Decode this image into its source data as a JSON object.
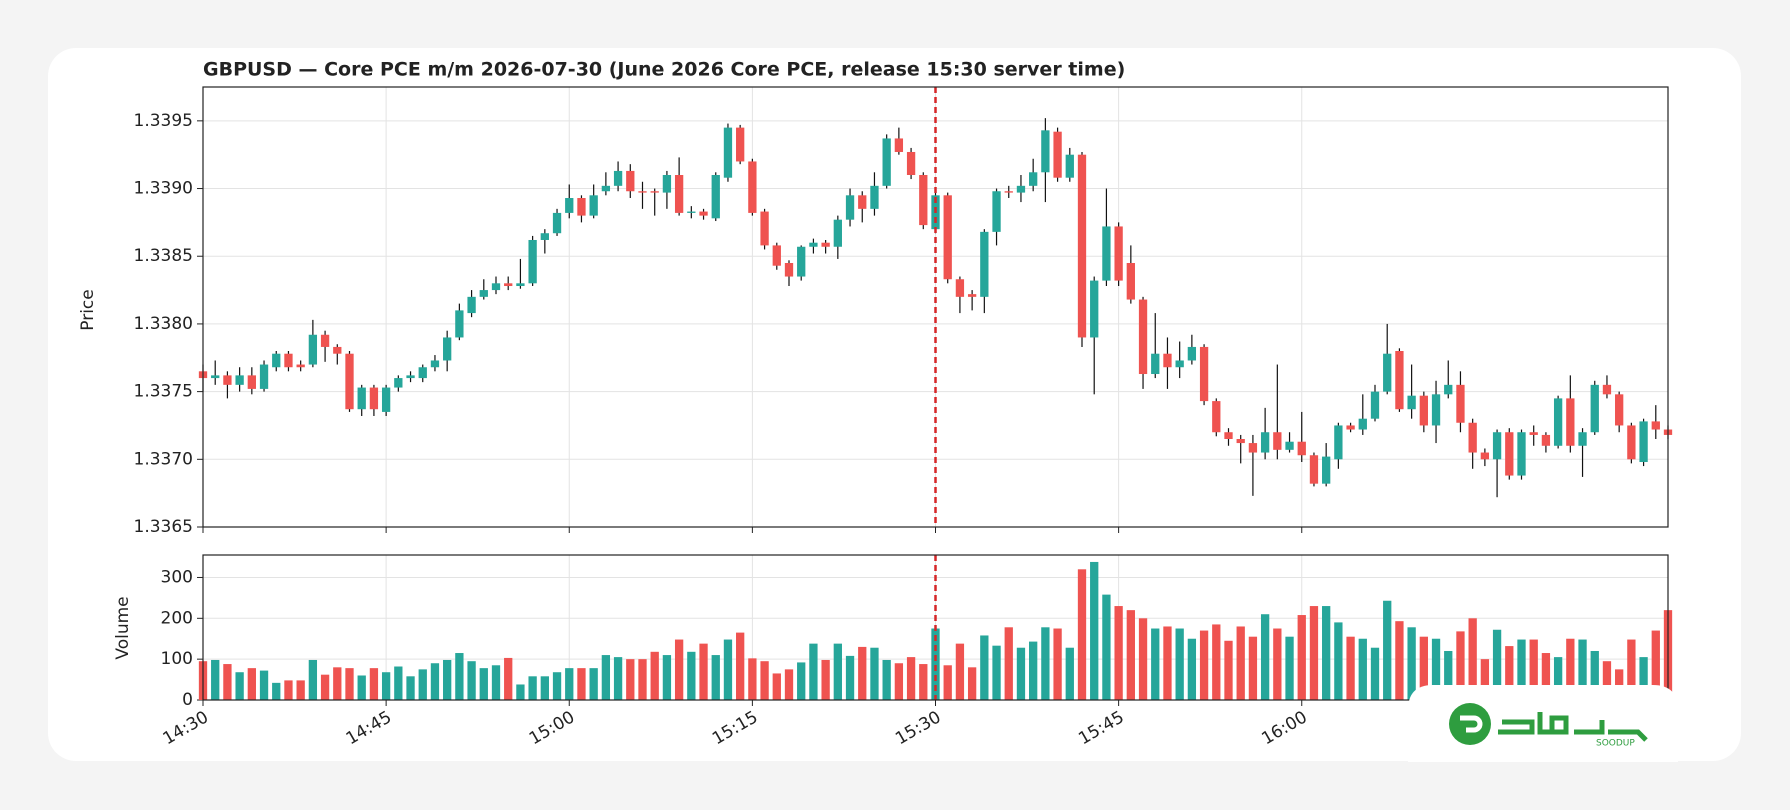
{
  "chart_data": {
    "type": "candlestick",
    "title": "GBPUSD — Core PCE m/m 2026-07-30 (June 2026 Core PCE, release 15:30 server time)",
    "ylabel": "Price",
    "volume_label": "Volume",
    "up_color": "#26a69a",
    "down_color": "#ef5350",
    "vline": {
      "x": "15:30",
      "color": "#d62728"
    },
    "grid": true,
    "watermark": "SOODUP",
    "x": [
      "14:30",
      "14:31",
      "14:32",
      "14:33",
      "14:34",
      "14:35",
      "14:36",
      "14:37",
      "14:38",
      "14:39",
      "14:40",
      "14:41",
      "14:42",
      "14:43",
      "14:44",
      "14:45",
      "14:46",
      "14:47",
      "14:48",
      "14:49",
      "14:50",
      "14:51",
      "14:52",
      "14:53",
      "14:54",
      "14:55",
      "14:56",
      "14:57",
      "14:58",
      "14:59",
      "15:00",
      "15:01",
      "15:02",
      "15:03",
      "15:04",
      "15:05",
      "15:06",
      "15:07",
      "15:08",
      "15:09",
      "15:10",
      "15:11",
      "15:12",
      "15:13",
      "15:14",
      "15:15",
      "15:16",
      "15:17",
      "15:18",
      "15:19",
      "15:20",
      "15:21",
      "15:22",
      "15:23",
      "15:24",
      "15:25",
      "15:26",
      "15:27",
      "15:28",
      "15:29",
      "15:30",
      "15:31",
      "15:32",
      "15:33",
      "15:34",
      "15:35",
      "15:36",
      "15:37",
      "15:38",
      "15:39",
      "15:40",
      "15:41",
      "15:42",
      "15:43",
      "15:44",
      "15:45",
      "15:46",
      "15:47",
      "15:48",
      "15:49",
      "15:50",
      "15:51",
      "15:52",
      "15:53",
      "15:54",
      "15:55",
      "15:56",
      "15:57",
      "15:58",
      "15:59",
      "16:00",
      "16:01",
      "16:02",
      "16:03",
      "16:04",
      "16:05",
      "16:06",
      "16:07",
      "16:08",
      "16:09",
      "16:10",
      "16:11",
      "16:12",
      "16:13",
      "16:14",
      "16:15",
      "16:16",
      "16:17",
      "16:18",
      "16:19",
      "16:20",
      "16:21",
      "16:22",
      "16:23",
      "16:24",
      "16:25",
      "16:26",
      "16:27",
      "16:28",
      "16:29",
      "16:30"
    ],
    "open": [
      1.33765,
      1.3376,
      1.33762,
      1.33755,
      1.33762,
      1.33752,
      1.33768,
      1.33778,
      1.3377,
      1.3377,
      1.33792,
      1.33783,
      1.33778,
      1.33737,
      1.33753,
      1.33735,
      1.33753,
      1.3376,
      1.3376,
      1.33768,
      1.33773,
      1.3379,
      1.33808,
      1.3382,
      1.33825,
      1.3383,
      1.33828,
      1.3383,
      1.33862,
      1.33867,
      1.33882,
      1.33893,
      1.3388,
      1.33898,
      1.33902,
      1.33913,
      1.33898,
      1.33898,
      1.33897,
      1.3391,
      1.33882,
      1.33883,
      1.33878,
      1.33908,
      1.33945,
      1.3392,
      1.33883,
      1.33858,
      1.33845,
      1.33835,
      1.33857,
      1.3386,
      1.33857,
      1.33877,
      1.33895,
      1.33885,
      1.33902,
      1.33937,
      1.33927,
      1.3391,
      1.3387,
      1.33895,
      1.33833,
      1.33822,
      1.3382,
      1.33868,
      1.33898,
      1.33897,
      1.33902,
      1.33912,
      1.33942,
      1.33908,
      1.33925,
      1.3379,
      1.33832,
      1.33872,
      1.33845,
      1.33818,
      1.33763,
      1.33778,
      1.33768,
      1.33773,
      1.33783,
      1.33743,
      1.3372,
      1.33715,
      1.33712,
      1.33705,
      1.3372,
      1.33707,
      1.33713,
      1.33703,
      1.33682,
      1.337,
      1.33725,
      1.33722,
      1.3373,
      1.3375,
      1.3378,
      1.33737,
      1.33747,
      1.33725,
      1.33748,
      1.33755,
      1.33727,
      1.33705,
      1.337,
      1.3372,
      1.33688,
      1.3372,
      1.33718,
      1.3371,
      1.33745,
      1.3371,
      1.3372,
      1.33755,
      1.33748,
      1.33725,
      1.33698,
      1.33728,
      1.33722
    ],
    "high": [
      1.3377,
      1.33773,
      1.33765,
      1.33768,
      1.33768,
      1.33773,
      1.3378,
      1.3378,
      1.33773,
      1.33803,
      1.33795,
      1.33785,
      1.3378,
      1.33755,
      1.33755,
      1.33755,
      1.33762,
      1.33765,
      1.3377,
      1.33777,
      1.33795,
      1.33815,
      1.33825,
      1.33833,
      1.33835,
      1.33835,
      1.33848,
      1.33865,
      1.3387,
      1.33885,
      1.33903,
      1.33895,
      1.33903,
      1.33912,
      1.3392,
      1.33918,
      1.33905,
      1.339,
      1.33913,
      1.33923,
      1.33887,
      1.33885,
      1.33912,
      1.33948,
      1.33947,
      1.33922,
      1.33885,
      1.3386,
      1.33847,
      1.33858,
      1.33863,
      1.33862,
      1.3388,
      1.339,
      1.33898,
      1.33912,
      1.3394,
      1.33945,
      1.3393,
      1.33912,
      1.33898,
      1.33897,
      1.33835,
      1.33825,
      1.3387,
      1.339,
      1.33902,
      1.3391,
      1.33922,
      1.33952,
      1.33945,
      1.3393,
      1.33927,
      1.33835,
      1.339,
      1.33875,
      1.33858,
      1.3382,
      1.33808,
      1.3379,
      1.33787,
      1.33792,
      1.33785,
      1.33745,
      1.33723,
      1.33718,
      1.33718,
      1.33738,
      1.3377,
      1.3372,
      1.33735,
      1.33705,
      1.33712,
      1.33727,
      1.33727,
      1.33748,
      1.33755,
      1.338,
      1.33782,
      1.3377,
      1.3375,
      1.33758,
      1.33773,
      1.33765,
      1.3373,
      1.33708,
      1.33722,
      1.33723,
      1.33722,
      1.33725,
      1.3372,
      1.33747,
      1.33762,
      1.33723,
      1.33758,
      1.33762,
      1.3375,
      1.33727,
      1.3373,
      1.3374,
      1.33725
    ],
    "low": [
      1.3375,
      1.33755,
      1.33745,
      1.3375,
      1.33748,
      1.3375,
      1.33765,
      1.33765,
      1.33765,
      1.33768,
      1.33772,
      1.3377,
      1.33735,
      1.33732,
      1.33732,
      1.33732,
      1.3375,
      1.33757,
      1.33757,
      1.33765,
      1.33765,
      1.33788,
      1.33805,
      1.33818,
      1.33822,
      1.33825,
      1.33826,
      1.33828,
      1.33852,
      1.33865,
      1.33878,
      1.33875,
      1.33878,
      1.33895,
      1.33898,
      1.33893,
      1.33885,
      1.3388,
      1.33885,
      1.3388,
      1.33878,
      1.33877,
      1.33876,
      1.33905,
      1.33918,
      1.3388,
      1.33855,
      1.3384,
      1.33828,
      1.33832,
      1.33852,
      1.33852,
      1.33848,
      1.33872,
      1.33875,
      1.3388,
      1.339,
      1.33925,
      1.33907,
      1.3387,
      1.33867,
      1.3383,
      1.33808,
      1.3381,
      1.33808,
      1.33858,
      1.33893,
      1.3389,
      1.33898,
      1.3389,
      1.33905,
      1.33905,
      1.33783,
      1.33748,
      1.33828,
      1.33828,
      1.33815,
      1.33752,
      1.3376,
      1.33752,
      1.3376,
      1.3377,
      1.3374,
      1.33717,
      1.3371,
      1.33697,
      1.33673,
      1.337,
      1.337,
      1.33705,
      1.33698,
      1.3368,
      1.3368,
      1.33693,
      1.3372,
      1.33718,
      1.33728,
      1.33748,
      1.33735,
      1.3373,
      1.3372,
      1.33712,
      1.33745,
      1.3372,
      1.33693,
      1.33695,
      1.33672,
      1.33685,
      1.33685,
      1.3371,
      1.33705,
      1.33708,
      1.33705,
      1.33687,
      1.33718,
      1.33745,
      1.3372,
      1.33697,
      1.33695,
      1.33715,
      1.33715
    ],
    "close": [
      1.3376,
      1.33762,
      1.33755,
      1.33762,
      1.33752,
      1.3377,
      1.33778,
      1.33768,
      1.33768,
      1.33792,
      1.33783,
      1.33778,
      1.33737,
      1.33753,
      1.33737,
      1.33753,
      1.3376,
      1.33762,
      1.33768,
      1.33773,
      1.3379,
      1.3381,
      1.3382,
      1.33825,
      1.3383,
      1.33828,
      1.3383,
      1.33862,
      1.33867,
      1.33882,
      1.33893,
      1.3388,
      1.33895,
      1.33902,
      1.33913,
      1.33898,
      1.33897,
      1.33897,
      1.3391,
      1.33882,
      1.33883,
      1.3388,
      1.3391,
      1.33945,
      1.3392,
      1.33882,
      1.33858,
      1.33843,
      1.33835,
      1.33857,
      1.3386,
      1.33857,
      1.33877,
      1.33895,
      1.33885,
      1.33902,
      1.33937,
      1.33927,
      1.3391,
      1.33873,
      1.33895,
      1.33833,
      1.3382,
      1.3382,
      1.33868,
      1.33898,
      1.33897,
      1.33902,
      1.33912,
      1.33943,
      1.33908,
      1.33925,
      1.3379,
      1.33832,
      1.33872,
      1.33832,
      1.33818,
      1.33763,
      1.33778,
      1.33768,
      1.33773,
      1.33783,
      1.33743,
      1.3372,
      1.33715,
      1.33712,
      1.33705,
      1.3372,
      1.33707,
      1.33713,
      1.33703,
      1.33682,
      1.33702,
      1.33725,
      1.33722,
      1.3373,
      1.3375,
      1.33778,
      1.33737,
      1.33747,
      1.33725,
      1.33748,
      1.33755,
      1.33727,
      1.33705,
      1.337,
      1.3372,
      1.33688,
      1.3372,
      1.33718,
      1.3371,
      1.33745,
      1.3371,
      1.3372,
      1.33755,
      1.33748,
      1.33725,
      1.337,
      1.33728,
      1.33722,
      1.33718
    ],
    "volume": [
      95,
      98,
      88,
      68,
      78,
      72,
      42,
      48,
      48,
      98,
      62,
      80,
      78,
      60,
      78,
      68,
      82,
      58,
      75,
      90,
      98,
      115,
      95,
      78,
      85,
      103,
      38,
      58,
      58,
      68,
      78,
      78,
      78,
      110,
      105,
      100,
      100,
      118,
      110,
      148,
      118,
      138,
      110,
      148,
      165,
      102,
      95,
      65,
      75,
      92,
      138,
      98,
      138,
      108,
      130,
      128,
      98,
      90,
      105,
      88,
      175,
      85,
      138,
      80,
      158,
      133,
      178,
      128,
      143,
      178,
      175,
      128,
      320,
      338,
      258,
      230,
      220,
      200,
      175,
      180,
      175,
      150,
      170,
      185,
      145,
      180,
      155,
      210,
      175,
      155,
      208,
      230,
      230,
      190,
      155,
      150,
      128,
      243,
      193,
      178,
      155,
      150,
      120,
      168,
      200,
      100,
      172,
      132,
      148,
      148,
      115,
      105,
      150,
      148,
      120,
      95,
      75,
      148,
      105,
      170,
      220
    ],
    "xlim": [
      "14:30",
      "16:30"
    ],
    "xticks": [
      "14:30",
      "14:45",
      "15:00",
      "15:15",
      "15:30",
      "15:45",
      "16:00"
    ],
    "ylim": [
      1.3365,
      1.33975
    ],
    "yticks": [
      1.3365,
      {
        "value": 1.337,
        "label": "1.3370"
      },
      1.3375,
      {
        "value": 1.338,
        "label": "1.3380"
      },
      1.3385,
      {
        "value": 1.339,
        "label": "1.3390"
      },
      1.3395
    ],
    "volume_ylim": [
      0,
      355
    ],
    "volume_yticks": [
      0,
      100,
      200,
      300
    ]
  }
}
